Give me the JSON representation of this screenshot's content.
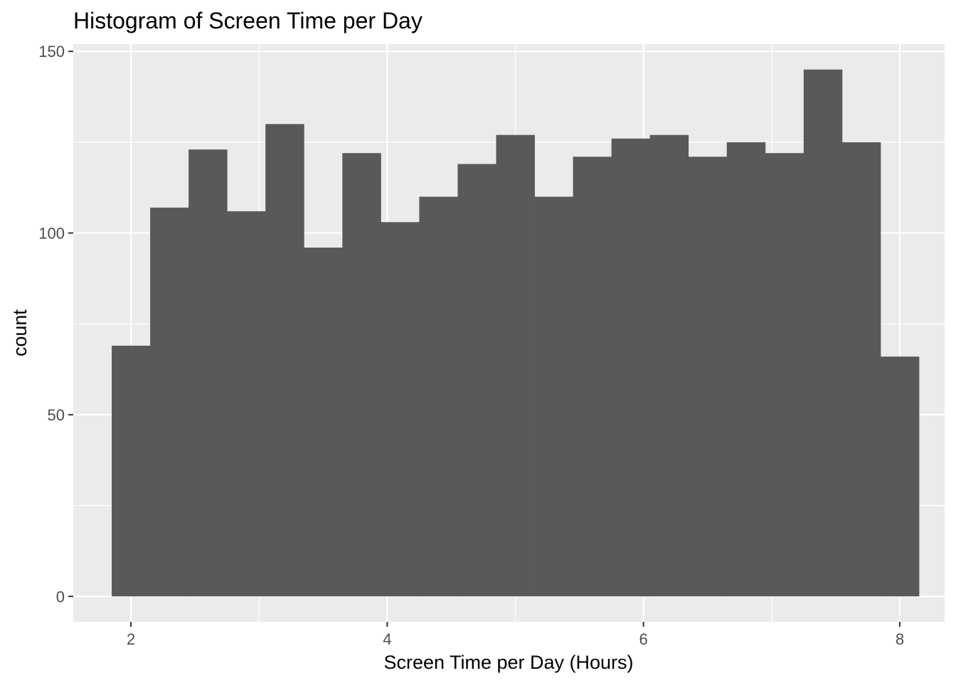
{
  "chart_data": {
    "type": "bar",
    "title": "Histogram of Screen Time per Day",
    "xlabel": "Screen Time per Day (Hours)",
    "ylabel": "count",
    "xlim": [
      1.55,
      8.35
    ],
    "ylim": [
      -7,
      152
    ],
    "x_ticks": [
      2,
      4,
      6,
      8
    ],
    "y_ticks": [
      0,
      50,
      100,
      150
    ],
    "x_tick_labels": [
      "2",
      "4",
      "6",
      "8"
    ],
    "y_tick_labels": [
      "0",
      "50",
      "100",
      "150"
    ],
    "grid": true,
    "bins": [
      {
        "x0": 1.85,
        "x1": 2.15,
        "count": 69
      },
      {
        "x0": 2.15,
        "x1": 2.45,
        "count": 107
      },
      {
        "x0": 2.45,
        "x1": 2.75,
        "count": 123
      },
      {
        "x0": 2.75,
        "x1": 3.05,
        "count": 106
      },
      {
        "x0": 3.05,
        "x1": 3.35,
        "count": 130
      },
      {
        "x0": 3.35,
        "x1": 3.65,
        "count": 96
      },
      {
        "x0": 3.65,
        "x1": 3.95,
        "count": 122
      },
      {
        "x0": 3.95,
        "x1": 4.25,
        "count": 103
      },
      {
        "x0": 4.25,
        "x1": 4.55,
        "count": 110
      },
      {
        "x0": 4.55,
        "x1": 4.85,
        "count": 119
      },
      {
        "x0": 4.85,
        "x1": 5.15,
        "count": 127
      },
      {
        "x0": 5.15,
        "x1": 5.45,
        "count": 110
      },
      {
        "x0": 5.45,
        "x1": 5.75,
        "count": 121
      },
      {
        "x0": 5.75,
        "x1": 6.05,
        "count": 126
      },
      {
        "x0": 6.05,
        "x1": 6.35,
        "count": 127
      },
      {
        "x0": 6.35,
        "x1": 6.65,
        "count": 121
      },
      {
        "x0": 6.65,
        "x1": 6.95,
        "count": 125
      },
      {
        "x0": 6.95,
        "x1": 7.25,
        "count": 122
      },
      {
        "x0": 7.25,
        "x1": 7.55,
        "count": 145
      },
      {
        "x0": 7.55,
        "x1": 7.85,
        "count": 125
      },
      {
        "x0": 7.85,
        "x1": 8.15,
        "count": 66
      }
    ],
    "colors": {
      "panel": "#ebebeb",
      "grid_major": "#ffffff",
      "bar": "#595959",
      "tick": "#333333"
    }
  }
}
